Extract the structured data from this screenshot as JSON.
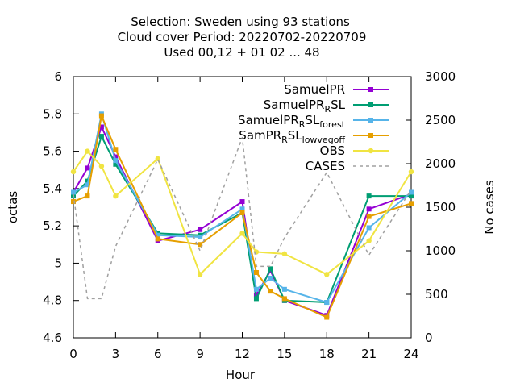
{
  "chart_data": {
    "type": "line",
    "title_lines": [
      "Selection: Sweden using    93 stations",
      "Cloud cover   Period: 20220702-20220709",
      "Used  00,12  + 01 02 ... 48"
    ],
    "xlabel": "Hour",
    "ylabel": "octas",
    "y2label": "No cases",
    "xlim": [
      0,
      24
    ],
    "ylim": [
      4.6,
      6.0
    ],
    "y2lim": [
      0,
      3000
    ],
    "xticks": [
      "0",
      "3",
      "6",
      "9",
      "12",
      "15",
      "18",
      "21",
      "24"
    ],
    "yticks": [
      "4.6",
      "4.8",
      "5",
      "5.2",
      "5.4",
      "5.6",
      "5.8",
      "6"
    ],
    "y2ticks": [
      "0",
      "500",
      "1000",
      "1500",
      "2000",
      "2500",
      "3000"
    ],
    "legend_position": "top-right",
    "series": [
      {
        "name": "SamuelPR",
        "name_parts": [
          {
            "t": "SamuelPR"
          }
        ],
        "color": "#9400d3",
        "marker": "square",
        "axis": "y1",
        "x": [
          0,
          1,
          2,
          3,
          6,
          9,
          12,
          13,
          14,
          15,
          18,
          21,
          24
        ],
        "y": [
          5.38,
          5.51,
          5.73,
          5.57,
          5.12,
          5.18,
          5.33,
          4.83,
          4.96,
          4.8,
          4.72,
          5.29,
          5.37
        ]
      },
      {
        "name": "SamuelPR_RSL",
        "name_parts": [
          {
            "t": "SamuelPR"
          },
          {
            "t": "R",
            "sub": true
          },
          {
            "t": "SL"
          }
        ],
        "color": "#009e73",
        "marker": "square",
        "axis": "y1",
        "x": [
          0,
          1,
          2,
          3,
          6,
          9,
          12,
          13,
          14,
          15,
          18,
          21,
          24
        ],
        "y": [
          5.36,
          5.44,
          5.68,
          5.53,
          5.16,
          5.15,
          5.27,
          4.81,
          4.97,
          4.8,
          4.79,
          5.36,
          5.36
        ]
      },
      {
        "name": "SamuelPR_RSL_forest",
        "name_parts": [
          {
            "t": "SamuelPR"
          },
          {
            "t": "R",
            "sub": true
          },
          {
            "t": "SL"
          },
          {
            "t": "forest",
            "sub": true
          }
        ],
        "color": "#56b4e9",
        "marker": "square",
        "axis": "y1",
        "x": [
          0,
          1,
          2,
          3,
          6,
          9,
          12,
          13,
          14,
          15,
          18,
          21,
          24
        ],
        "y": [
          5.38,
          5.42,
          5.8,
          5.55,
          5.15,
          5.14,
          5.29,
          4.86,
          4.92,
          4.86,
          4.79,
          5.19,
          5.38
        ]
      },
      {
        "name": "SamPR_RSL_lowvegoff",
        "name_parts": [
          {
            "t": "SamPR"
          },
          {
            "t": "R",
            "sub": true
          },
          {
            "t": "SL"
          },
          {
            "t": "lowvegoff",
            "sub": true
          }
        ],
        "color": "#e69f00",
        "marker": "square",
        "axis": "y1",
        "x": [
          0,
          1,
          2,
          3,
          6,
          9,
          12,
          13,
          14,
          15,
          18,
          21,
          24
        ],
        "y": [
          5.33,
          5.36,
          5.79,
          5.61,
          5.13,
          5.1,
          5.27,
          4.95,
          4.85,
          4.81,
          4.71,
          5.25,
          5.32
        ]
      },
      {
        "name": "OBS",
        "name_parts": [
          {
            "t": "OBS"
          }
        ],
        "color": "#f0e442",
        "marker": "circle",
        "axis": "y1",
        "x": [
          0,
          1,
          2,
          3,
          6,
          9,
          12,
          13,
          15,
          18,
          21,
          24
        ],
        "y": [
          5.49,
          5.6,
          5.52,
          5.36,
          5.56,
          4.94,
          5.16,
          5.06,
          5.05,
          4.94,
          5.12,
          5.49
        ]
      },
      {
        "name": "CASES",
        "name_parts": [
          {
            "t": "CASES"
          }
        ],
        "color": "#a0a0a0",
        "marker": "none",
        "dashed": true,
        "axis": "y2",
        "x": [
          0,
          1,
          2,
          3,
          6,
          9,
          12,
          13,
          14,
          15,
          18,
          21,
          24
        ],
        "y": [
          1650,
          450,
          450,
          1050,
          2050,
          1000,
          2300,
          820,
          820,
          1150,
          1900,
          950,
          1700
        ]
      }
    ]
  }
}
